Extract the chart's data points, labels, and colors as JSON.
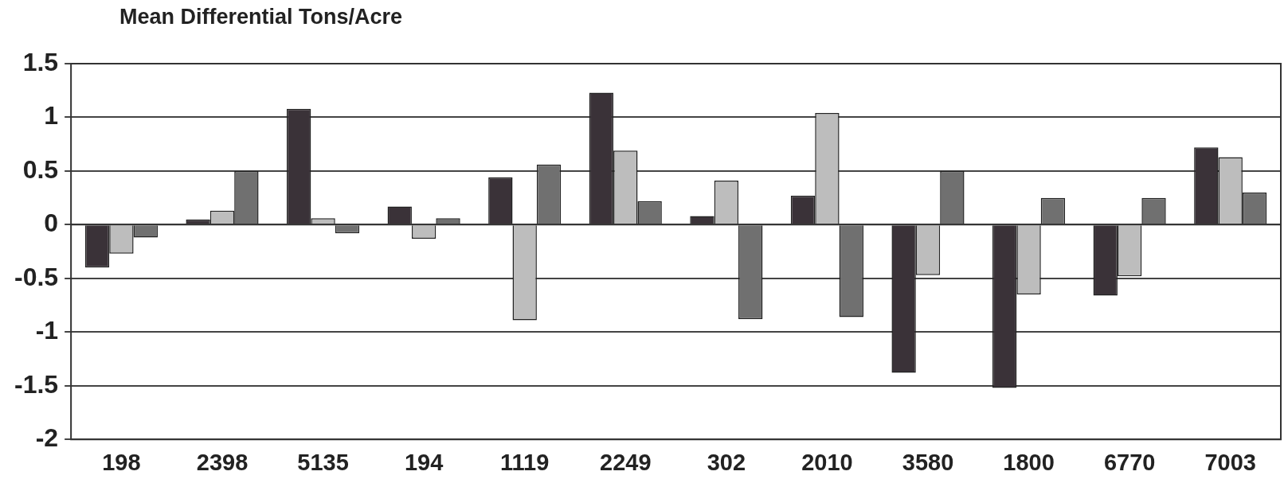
{
  "chart_data": {
    "type": "bar",
    "title": "Mean Differential Tons/Acre",
    "categories": [
      "198",
      "2398",
      "5135",
      "194",
      "1119",
      "2249",
      "302",
      "2010",
      "3580",
      "1800",
      "6770",
      "7003"
    ],
    "series": [
      {
        "color": "#3a3238",
        "values": [
          -0.4,
          0.05,
          1.08,
          0.17,
          0.44,
          1.23,
          0.08,
          0.27,
          -1.38,
          -1.52,
          -0.66,
          0.72
        ]
      },
      {
        "color": "#bdbdbd",
        "values": [
          -0.27,
          0.13,
          0.06,
          -0.13,
          -0.89,
          0.69,
          0.41,
          1.04,
          -0.47,
          -0.65,
          -0.48,
          0.63
        ]
      },
      {
        "color": "#707070",
        "values": [
          -0.12,
          0.5,
          -0.08,
          0.06,
          0.56,
          0.22,
          -0.88,
          -0.86,
          0.5,
          0.25,
          0.25,
          0.3
        ]
      }
    ],
    "ylim": [
      -2,
      1.5
    ],
    "yticks": [
      -2,
      -1.5,
      -1,
      -0.5,
      0,
      0.5,
      1,
      1.5
    ],
    "grid": "y",
    "legend": false
  }
}
